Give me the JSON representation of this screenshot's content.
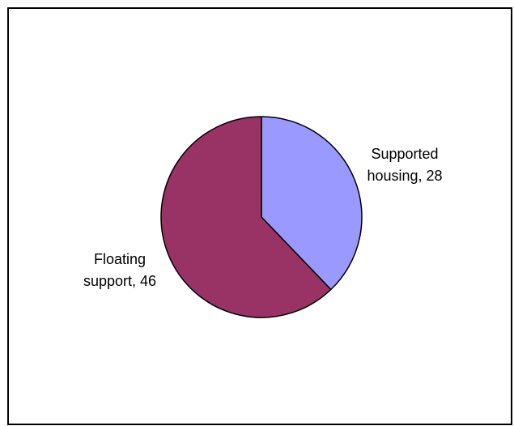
{
  "chart_data": {
    "type": "pie",
    "categories": [
      "Supported housing",
      "Floating support"
    ],
    "values": [
      28,
      46
    ],
    "labels": [
      [
        "Supported",
        "housing, 28"
      ],
      [
        "Floating",
        "support, 46"
      ]
    ],
    "colors": [
      "#9999ff",
      "#993366"
    ],
    "legend": "none"
  }
}
